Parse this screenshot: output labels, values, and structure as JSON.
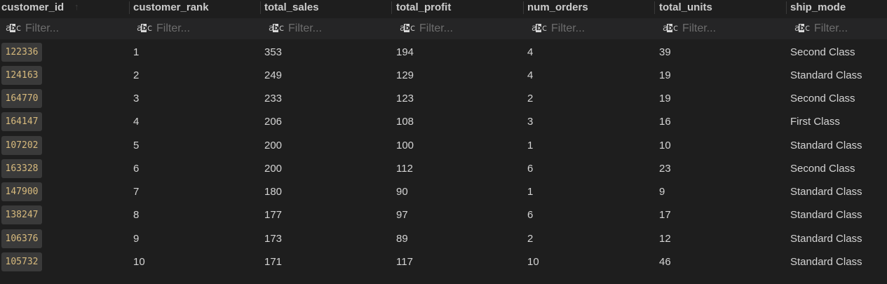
{
  "columns": [
    {
      "name": "customer_id",
      "filter_placeholder": "Filter..."
    },
    {
      "name": "customer_rank",
      "filter_placeholder": "Filter..."
    },
    {
      "name": "total_sales",
      "filter_placeholder": "Filter..."
    },
    {
      "name": "total_profit",
      "filter_placeholder": "Filter..."
    },
    {
      "name": "num_orders",
      "filter_placeholder": "Filter..."
    },
    {
      "name": "total_units",
      "filter_placeholder": "Filter..."
    },
    {
      "name": "ship_mode",
      "filter_placeholder": "Filter..."
    }
  ],
  "filter_type_icon": "text-type-icon",
  "sort_icon": "sort-arrow-icon",
  "colors": {
    "background": "#1e1e1e",
    "filter_row": "#252526",
    "id_chip_bg": "#3a3a3a",
    "id_text": "#d7ba7d",
    "cell_text": "#d4d4d4"
  },
  "rows": [
    [
      "122336",
      "1",
      "353",
      "194",
      "4",
      "39",
      "Second Class"
    ],
    [
      "124163",
      "2",
      "249",
      "129",
      "4",
      "19",
      "Standard Class"
    ],
    [
      "164770",
      "3",
      "233",
      "123",
      "2",
      "19",
      "Second Class"
    ],
    [
      "164147",
      "4",
      "206",
      "108",
      "3",
      "16",
      "First Class"
    ],
    [
      "107202",
      "5",
      "200",
      "100",
      "1",
      "10",
      "Standard Class"
    ],
    [
      "163328",
      "6",
      "200",
      "112",
      "6",
      "23",
      "Second Class"
    ],
    [
      "147900",
      "7",
      "180",
      "90",
      "1",
      "9",
      "Standard Class"
    ],
    [
      "138247",
      "8",
      "177",
      "97",
      "6",
      "17",
      "Standard Class"
    ],
    [
      "106376",
      "9",
      "173",
      "89",
      "2",
      "12",
      "Standard Class"
    ],
    [
      "105732",
      "10",
      "171",
      "117",
      "10",
      "46",
      "Standard Class"
    ]
  ]
}
